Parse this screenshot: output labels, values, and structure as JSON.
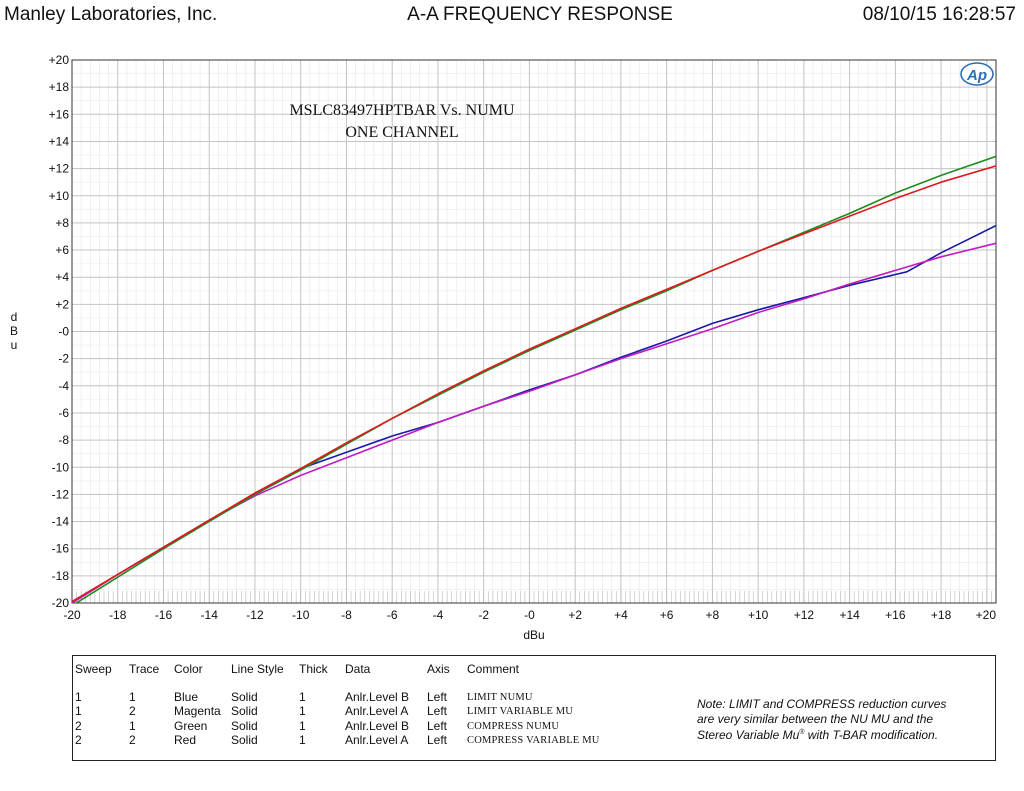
{
  "header": {
    "company": "Manley Laboratories, Inc.",
    "title": "A-A FREQUENCY RESPONSE",
    "datetime": "08/10/15 16:28:57"
  },
  "chart_data": {
    "type": "line",
    "annotation": [
      "MSLC83497HPTBAR  Vs. NUMU",
      "ONE CHANNEL"
    ],
    "logo": "Ap",
    "xlabel": "dBu",
    "ylabel": "dBu",
    "xlim": [
      -20,
      20.4
    ],
    "ylim": [
      -20,
      20
    ],
    "grid": true,
    "x_ticks": [
      "-20",
      "-18",
      "-16",
      "-14",
      "-12",
      "-10",
      "-8",
      "-6",
      "-4",
      "-2",
      "-0",
      "+2",
      "+4",
      "+6",
      "+8",
      "+10",
      "+12",
      "+14",
      "+16",
      "+18",
      "+20"
    ],
    "y_ticks": [
      "+20",
      "+18",
      "+16",
      "+14",
      "+12",
      "+10",
      "+8",
      "+6",
      "+4",
      "+2",
      "-0",
      "-2",
      "-4",
      "-6",
      "-8",
      "-10",
      "-12",
      "-14",
      "-16",
      "-18",
      "-20"
    ],
    "series": [
      {
        "name": "LIMIT NUMU",
        "color": "#1a1aa6",
        "x": [
          -20,
          -18,
          -16,
          -14,
          -12,
          -10,
          -8,
          -6,
          -4,
          -2,
          0,
          2,
          4,
          6,
          8,
          10,
          12,
          14,
          16,
          16.5,
          18,
          20.4
        ],
        "y": [
          -20.0,
          -17.9,
          -15.9,
          -13.9,
          -12.0,
          -10.1,
          -8.9,
          -7.7,
          -6.7,
          -5.5,
          -4.3,
          -3.2,
          -1.9,
          -0.7,
          0.6,
          1.6,
          2.5,
          3.4,
          4.2,
          4.4,
          5.8,
          7.8
        ]
      },
      {
        "name": "LIMIT VARIABLE MU",
        "color": "#c21bc2",
        "x": [
          -20,
          -18,
          -16,
          -14,
          -12,
          -10,
          -8,
          -6,
          -4,
          -2,
          0,
          2,
          4,
          6,
          8,
          10,
          12,
          14,
          16,
          18,
          20.4
        ],
        "y": [
          -20.0,
          -17.9,
          -15.9,
          -13.9,
          -12.1,
          -10.6,
          -9.3,
          -8.0,
          -6.7,
          -5.5,
          -4.4,
          -3.2,
          -2.0,
          -0.9,
          0.2,
          1.4,
          2.4,
          3.5,
          4.5,
          5.5,
          6.5
        ]
      },
      {
        "name": "COMPRESS NUMU",
        "color": "#1f8a1f",
        "x": [
          -20,
          -18,
          -16,
          -14,
          -12,
          -10,
          -8,
          -6,
          -4,
          -2,
          0,
          2,
          4,
          6,
          8,
          10,
          12,
          14,
          16,
          18,
          20.4
        ],
        "y": [
          -20.2,
          -18.1,
          -16.0,
          -14.0,
          -12.0,
          -10.2,
          -8.3,
          -6.4,
          -4.7,
          -3.0,
          -1.4,
          0.1,
          1.6,
          3.0,
          4.5,
          5.9,
          7.3,
          8.7,
          10.2,
          11.5,
          12.9
        ]
      },
      {
        "name": "COMPRESS VARIABLE MU",
        "color": "#e0191f",
        "x": [
          -20,
          -18,
          -16,
          -14,
          -12,
          -10,
          -8,
          -6,
          -4,
          -2,
          0,
          2,
          4,
          6,
          8,
          10,
          12,
          14,
          16,
          18,
          20.4
        ],
        "y": [
          -19.9,
          -17.9,
          -15.9,
          -13.9,
          -11.9,
          -10.1,
          -8.2,
          -6.4,
          -4.6,
          -2.9,
          -1.3,
          0.2,
          1.7,
          3.1,
          4.5,
          5.9,
          7.2,
          8.5,
          9.8,
          11.0,
          12.2
        ]
      }
    ]
  },
  "legend": {
    "headers": [
      "Sweep",
      "Trace",
      "Color",
      "Line Style",
      "Thick",
      "Data",
      "Axis",
      "Comment"
    ],
    "rows": [
      [
        "1",
        "1",
        "Blue",
        "Solid",
        "1",
        "Anlr.Level B",
        "Left",
        "LIMIT NUMU"
      ],
      [
        "1",
        "2",
        "Magenta",
        "Solid",
        "1",
        "Anlr.Level A",
        "Left",
        "LIMIT VARIABLE MU"
      ],
      [
        "2",
        "1",
        "Green",
        "Solid",
        "1",
        "Anlr.Level B",
        "Left",
        "COMPRESS NUMU"
      ],
      [
        "2",
        "2",
        "Red",
        "Solid",
        "1",
        "Anlr.Level A",
        "Left",
        "COMPRESS VARIABLE MU"
      ]
    ]
  },
  "note": {
    "line1": "Note: LIMIT and COMPRESS reduction curves",
    "line2": "are very similar between the NU MU and the",
    "line3a": "Stereo Variable Mu",
    "reg": "®",
    "line3b": " with T-BAR modification."
  }
}
